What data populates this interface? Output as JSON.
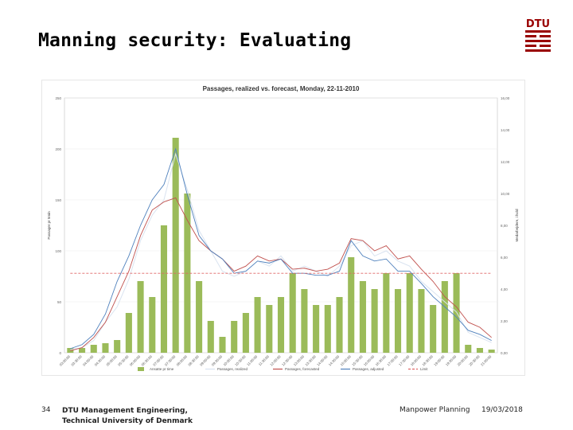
{
  "slide": {
    "title": "Manning security: Evaluating",
    "page_number": "34",
    "institution_line1": "DTU Management Engineering,",
    "institution_line2": "Technical University of Denmark",
    "course": "Manpower Planning",
    "date": "19/03/2018",
    "logo_text": "DTU"
  },
  "colors": {
    "bars": "#9bbb59",
    "realized": "#d9e3f0",
    "forecast": "#c0504d",
    "adjusted": "#4f81bd",
    "limit": "#e06666",
    "logo": "#990000"
  },
  "chart_data": {
    "type": "bar+line",
    "title": "Passages, realized vs. forecast, Monday, 22-11-2010",
    "ylabel": "Passager pr 5min",
    "y2label": "Medarbejdere, i hold",
    "ylim": [
      0,
      250
    ],
    "yticks": [
      "0",
      "50",
      "100",
      "150",
      "200",
      "250"
    ],
    "y2lim": [
      0,
      16
    ],
    "y2ticks": [
      "0,00",
      "2,00",
      "4,00",
      "6,00",
      "8,00",
      "10,00",
      "12,00",
      "14,00",
      "16,00"
    ],
    "x": [
      "03:00",
      "03:30",
      "04:00",
      "04:30",
      "05:00",
      "05:30",
      "06:00",
      "06:30",
      "07:00",
      "07:30",
      "08:00",
      "08:30",
      "09:00",
      "09:30",
      "10:00",
      "10:30",
      "11:00",
      "11:30",
      "12:00",
      "12:30",
      "13:00",
      "13:30",
      "14:00",
      "14:30",
      "15:00",
      "15:30",
      "16:00",
      "16:30",
      "17:00",
      "17:30",
      "18:00",
      "18:30",
      "19:00",
      "19:30",
      "20:00",
      "20:30",
      "21:00"
    ],
    "xtick_labels": [
      "03:00:00",
      "03:30:00",
      "04:00:00",
      "04:30:00",
      "05:00:00",
      "05:30:00",
      "06:00:00",
      "06:30:00",
      "07:00:00",
      "07:30:00",
      "08:00:00",
      "08:30:00",
      "09:00:00",
      "09:30:00",
      "10:00:00",
      "10:30:00",
      "11:00:00",
      "11:30:00",
      "12:00:00",
      "12:30:00",
      "13:00:00",
      "13:30:00",
      "14:00:00",
      "14:30:00",
      "15:00:00",
      "15:30:00",
      "16:00:00",
      "16:30:00",
      "17:00:00",
      "17:30:00",
      "18:00:00",
      "18:30:00",
      "19:00:00",
      "19:30:00",
      "20:00:00",
      "20:30:00",
      "21:00:00"
    ],
    "series": [
      {
        "name": "Ansatte pr time",
        "type": "bar",
        "axis": "right",
        "values": [
          0.3,
          0.3,
          0.5,
          0.6,
          0.8,
          2.5,
          4.5,
          3.5,
          8.0,
          13.5,
          10.0,
          4.5,
          2.0,
          1.0,
          2.0,
          2.5,
          3.5,
          3.0,
          3.5,
          5.0,
          4.0,
          3.0,
          3.0,
          3.5,
          6.0,
          4.5,
          4.0,
          5.0,
          4.0,
          5.0,
          4.0,
          3.0,
          4.5,
          5.0,
          0.5,
          0.3,
          0.2
        ]
      },
      {
        "name": "Passages, realized",
        "type": "line",
        "axis": "left",
        "values": [
          3,
          5,
          12,
          30,
          45,
          72,
          110,
          135,
          150,
          195,
          160,
          120,
          100,
          80,
          75,
          80,
          90,
          85,
          95,
          80,
          85,
          80,
          75,
          85,
          105,
          110,
          95,
          100,
          90,
          85,
          70,
          60,
          50,
          40,
          20,
          15,
          10
        ]
      },
      {
        "name": "Passages, forecasted",
        "type": "line",
        "axis": "left",
        "values": [
          2,
          5,
          15,
          30,
          55,
          80,
          115,
          140,
          148,
          152,
          130,
          110,
          100,
          92,
          80,
          85,
          95,
          90,
          92,
          82,
          83,
          80,
          82,
          88,
          112,
          110,
          100,
          105,
          92,
          95,
          82,
          70,
          55,
          45,
          30,
          25,
          15
        ]
      },
      {
        "name": "Passages, adjusted",
        "type": "line",
        "axis": "left",
        "values": [
          4,
          8,
          18,
          38,
          70,
          95,
          125,
          150,
          165,
          200,
          155,
          115,
          100,
          92,
          78,
          80,
          90,
          88,
          92,
          78,
          78,
          76,
          76,
          80,
          110,
          95,
          90,
          92,
          80,
          80,
          68,
          55,
          45,
          35,
          22,
          18,
          12
        ]
      },
      {
        "name": "Limit",
        "type": "line",
        "axis": "left",
        "dashed": true,
        "values": [
          78,
          78,
          78,
          78,
          78,
          78,
          78,
          78,
          78,
          78,
          78,
          78,
          78,
          78,
          78,
          78,
          78,
          78,
          78,
          78,
          78,
          78,
          78,
          78,
          78,
          78,
          78,
          78,
          78,
          78,
          78,
          78,
          78,
          78,
          78,
          78,
          78
        ]
      }
    ],
    "legend": [
      "Ansatte pr time",
      "Passages, realized",
      "Passages, forecasted",
      "Passages, adjusted",
      "Limit"
    ],
    "legend_position": "bottom"
  }
}
